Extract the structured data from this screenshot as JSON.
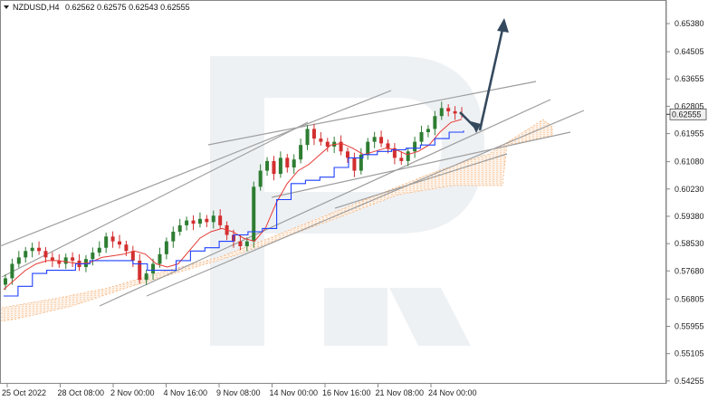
{
  "header": {
    "symbol_label": "NZDUSD,H4",
    "ohlc": "0.62562 0.62575 0.62543 0.62555"
  },
  "chart_data": {
    "type": "candlestick",
    "title": "NZDUSD,H4",
    "y_ticks": [
      "0.65380",
      "0.64505",
      "0.63655",
      "0.62805",
      "0.61955",
      "0.61080",
      "0.60230",
      "0.59380",
      "0.58530",
      "0.57680",
      "0.56805",
      "0.55955",
      "0.55105",
      "0.54255"
    ],
    "ylim": [
      0.5425,
      0.6555
    ],
    "x_ticks": [
      "25 Oct 2022",
      "28 Oct 08:00",
      "2 Nov 00:00",
      "4 Nov 16:00",
      "9 Nov 08:00",
      "14 Nov 00:00",
      "16 Nov 16:00",
      "21 Nov 08:00",
      "24 Nov 00:00"
    ],
    "current_price": "0.62555",
    "colors": {
      "bull": "#2e7d32",
      "bear": "#d32f2f",
      "tenkan": "#e53935",
      "kijun": "#1e40ff",
      "cloud": "#f4a460",
      "trendline": "#9e9e9e",
      "arrow": "#34495e",
      "price_box": "#f0f0f0"
    },
    "closes": [
      0.5745,
      0.579,
      0.581,
      0.583,
      0.584,
      0.583,
      0.581,
      0.58,
      0.579,
      0.581,
      0.58,
      0.578,
      0.5805,
      0.5825,
      0.584,
      0.5875,
      0.586,
      0.585,
      0.583,
      0.58,
      0.574,
      0.576,
      0.579,
      0.582,
      0.586,
      0.589,
      0.591,
      0.5925,
      0.5915,
      0.593,
      0.592,
      0.594,
      0.591,
      0.588,
      0.586,
      0.5845,
      0.586,
      0.603,
      0.608,
      0.611,
      0.607,
      0.612,
      0.609,
      0.6115,
      0.616,
      0.621,
      0.618,
      0.617,
      0.6155,
      0.617,
      0.614,
      0.612,
      0.608,
      0.613,
      0.617,
      0.6185,
      0.6165,
      0.615,
      0.612,
      0.611,
      0.614,
      0.617,
      0.62,
      0.621,
      0.625,
      0.6275,
      0.6265,
      0.6258,
      0.62555
    ],
    "tenkan_sen": [
      0.571,
      0.574,
      0.577,
      0.579,
      0.58,
      0.58,
      0.5795,
      0.579,
      0.5795,
      0.581,
      0.5815,
      0.582,
      0.583,
      0.582,
      0.579,
      0.578,
      0.579,
      0.583,
      0.587,
      0.589,
      0.59,
      0.589,
      0.587,
      0.586,
      0.59,
      0.598,
      0.604,
      0.608,
      0.61,
      0.613,
      0.616,
      0.6165,
      0.615,
      0.613,
      0.614,
      0.615,
      0.6145,
      0.613,
      0.614,
      0.616,
      0.62,
      0.623,
      0.624
    ],
    "kijun_sen": [
      0.569,
      0.572,
      0.576,
      0.577,
      0.577,
      0.579,
      0.58,
      0.58,
      0.58,
      0.579,
      0.577,
      0.577,
      0.58,
      0.583,
      0.584,
      0.586,
      0.588,
      0.589,
      0.59,
      0.599,
      0.604,
      0.605,
      0.606,
      0.609,
      0.612,
      0.613,
      0.614,
      0.6145,
      0.615,
      0.616,
      0.618,
      0.62,
      0.6205
    ]
  }
}
